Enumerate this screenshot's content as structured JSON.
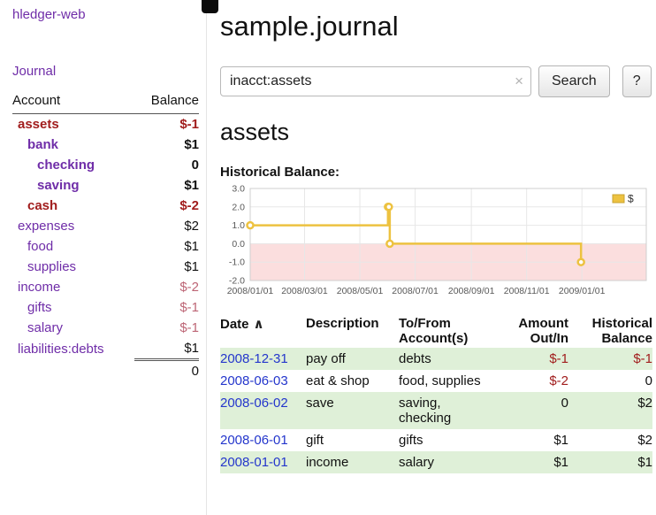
{
  "colors": {
    "purple": "#6f2da8",
    "negative": "#a11d1d",
    "negative_soft": "#bd6575",
    "link_blue": "#2436cc",
    "row_stripe": "#dff0d8",
    "chart_line": "#edc240",
    "chart_negative_region": "#fbdede"
  },
  "app": {
    "brand": "hledger-web",
    "nav_journal": "Journal"
  },
  "sidebar": {
    "accounts": {
      "col_account": "Account",
      "col_balance": "Balance",
      "rows": [
        {
          "name": "assets",
          "indent": 0,
          "bold": true,
          "name_negative": true,
          "balance": "$-1",
          "balance_negative": true
        },
        {
          "name": "bank",
          "indent": 1,
          "bold": true,
          "name_negative": false,
          "balance": "$1",
          "balance_negative": false
        },
        {
          "name": "checking",
          "indent": 2,
          "bold": true,
          "name_negative": false,
          "balance": "0",
          "balance_negative": false
        },
        {
          "name": "saving",
          "indent": 2,
          "bold": true,
          "name_negative": false,
          "balance": "$1",
          "balance_negative": false
        },
        {
          "name": "cash",
          "indent": 1,
          "bold": true,
          "name_negative": true,
          "balance": "$-2",
          "balance_negative": true
        },
        {
          "name": "expenses",
          "indent": 0,
          "bold": false,
          "name_negative": false,
          "balance": "$2",
          "balance_negative": false
        },
        {
          "name": "food",
          "indent": 1,
          "bold": false,
          "name_negative": false,
          "balance": "$1",
          "balance_negative": false
        },
        {
          "name": "supplies",
          "indent": 1,
          "bold": false,
          "name_negative": false,
          "balance": "$1",
          "balance_negative": false
        },
        {
          "name": "income",
          "indent": 0,
          "bold": false,
          "name_negative": false,
          "balance": "$-2",
          "balance_negative": true
        },
        {
          "name": "gifts",
          "indent": 1,
          "bold": false,
          "name_negative": false,
          "balance": "$-1",
          "balance_negative": true
        },
        {
          "name": "salary",
          "indent": 1,
          "bold": false,
          "name_negative": false,
          "balance": "$-1",
          "balance_negative": true
        },
        {
          "name": "liabilities:debts",
          "indent": 0,
          "bold": false,
          "name_negative": false,
          "balance": "$1",
          "balance_negative": false
        }
      ],
      "total": "0"
    }
  },
  "main": {
    "title": "sample.journal",
    "search": {
      "value": "inacct:assets",
      "clear_icon": "×",
      "button_label": "Search",
      "help_label": "?"
    },
    "heading": "assets",
    "chart_label": "Historical Balance:",
    "register": {
      "headers": {
        "date": "Date",
        "sort_indicator": "∧",
        "description": "Description",
        "accounts": "To/From\nAccount(s)",
        "amount": "Amount\nOut/In",
        "balance": "Historical\nBalance"
      },
      "rows": [
        {
          "date": "2008-12-31",
          "description": "pay off",
          "accounts": "debts",
          "amount": "$-1",
          "amount_negative": true,
          "balance": "$-1",
          "balance_negative": true
        },
        {
          "date": "2008-06-03",
          "description": "eat & shop",
          "accounts": "food, supplies",
          "amount": "$-2",
          "amount_negative": true,
          "balance": "0",
          "balance_negative": false
        },
        {
          "date": "2008-06-02",
          "description": "save",
          "accounts": "saving,\nchecking",
          "amount": "0",
          "amount_negative": false,
          "balance": "$2",
          "balance_negative": false
        },
        {
          "date": "2008-06-01",
          "description": "gift",
          "accounts": "gifts",
          "amount": "$1",
          "amount_negative": false,
          "balance": "$2",
          "balance_negative": false
        },
        {
          "date": "2008-01-01",
          "description": "income",
          "accounts": "salary",
          "amount": "$1",
          "amount_negative": false,
          "balance": "$1",
          "balance_negative": false
        }
      ]
    }
  },
  "chart_data": {
    "type": "line",
    "title": "Historical Balance",
    "legend": "$",
    "legend_position": "top-right",
    "grid": true,
    "step": true,
    "x_domain_days": [
      0,
      437
    ],
    "y_domain": [
      -2.0,
      3.0
    ],
    "y_ticks": [
      3.0,
      2.0,
      1.0,
      0.0,
      -1.0,
      -2.0
    ],
    "x_ticks": [
      {
        "day": 0,
        "label": "2008/01/01"
      },
      {
        "day": 60,
        "label": "2008/03/01"
      },
      {
        "day": 121,
        "label": "2008/05/01"
      },
      {
        "day": 182,
        "label": "2008/07/01"
      },
      {
        "day": 244,
        "label": "2008/09/01"
      },
      {
        "day": 305,
        "label": "2008/11/01"
      },
      {
        "day": 366,
        "label": "2009/01/01"
      }
    ],
    "series": [
      {
        "name": "$",
        "color": "#edc240",
        "points": [
          {
            "date": "2008-01-01",
            "day": 0,
            "value": 1
          },
          {
            "date": "2008-06-01",
            "day": 152,
            "value": 2
          },
          {
            "date": "2008-06-02",
            "day": 153,
            "value": 2
          },
          {
            "date": "2008-06-03",
            "day": 154,
            "value": 0
          },
          {
            "date": "2008-12-31",
            "day": 365,
            "value": -1
          }
        ]
      }
    ]
  }
}
